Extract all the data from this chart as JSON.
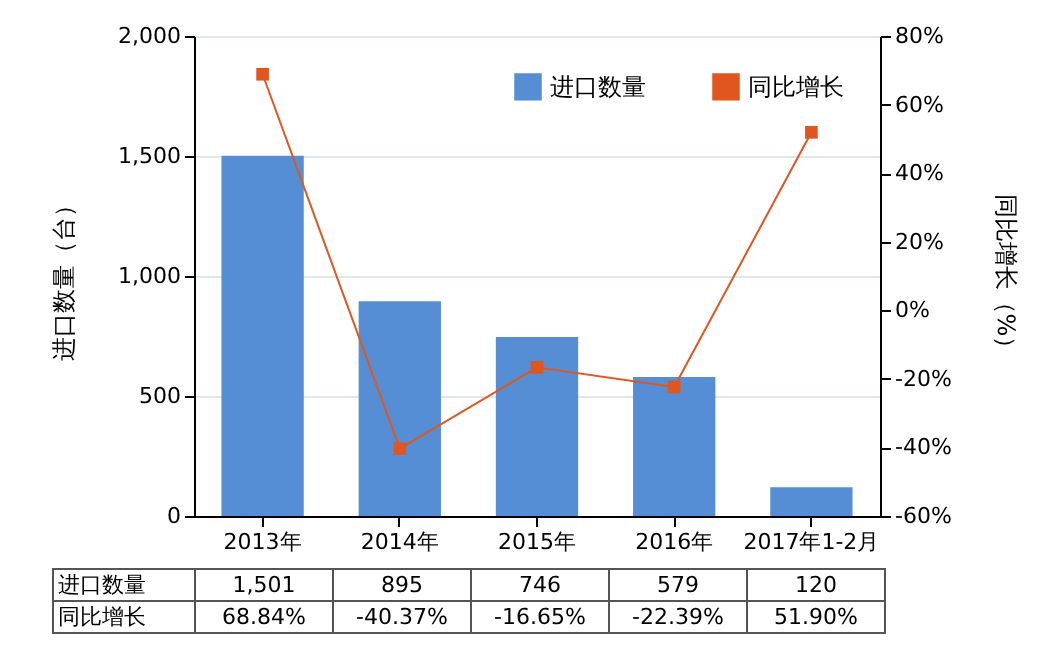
{
  "chart_data": {
    "type": "bar",
    "categories": [
      "2013年",
      "2014年",
      "2015年",
      "2016年",
      "2017年1-2月"
    ],
    "ylabel": "进口数量（台）",
    "y2label": "同比增长（%）",
    "ylim": [
      0,
      2000
    ],
    "yticks": [
      0,
      {
        "value": 500,
        "label": "500"
      },
      {
        "value": 1000,
        "label": "1,000"
      },
      {
        "value": 1500,
        "label": "1,500"
      },
      {
        "value": 2000,
        "label": "2,000"
      }
    ],
    "y2lim": [
      -60,
      80
    ],
    "y2ticks": [
      {
        "value": -60,
        "label": "-60%"
      },
      {
        "value": -40,
        "label": "-40%"
      },
      {
        "value": -20,
        "label": "-20%"
      },
      {
        "value": 0,
        "label": "0%"
      },
      {
        "value": 20,
        "label": "20%"
      },
      {
        "value": 40,
        "label": "40%"
      },
      {
        "value": 60,
        "label": "60%"
      },
      {
        "value": 80,
        "label": "80%"
      }
    ],
    "grid": "y",
    "legend": "top right",
    "marker": "square",
    "series": [
      {
        "name": "进口数量",
        "color": "#558ed5",
        "values": [
          1501,
          895,
          746,
          579,
          120
        ],
        "value_labels": [
          "1,501",
          "895",
          "746",
          "579",
          "120"
        ]
      },
      {
        "name": "同比增长",
        "type": "line",
        "axis": "y2",
        "color": "#e0561e",
        "values": [
          68.84,
          -40.37,
          -16.65,
          -22.39,
          51.9
        ],
        "value_labels": [
          "68.84%",
          "-40.37%",
          "-16.65%",
          "-22.39%",
          "51.90%"
        ]
      }
    ]
  }
}
